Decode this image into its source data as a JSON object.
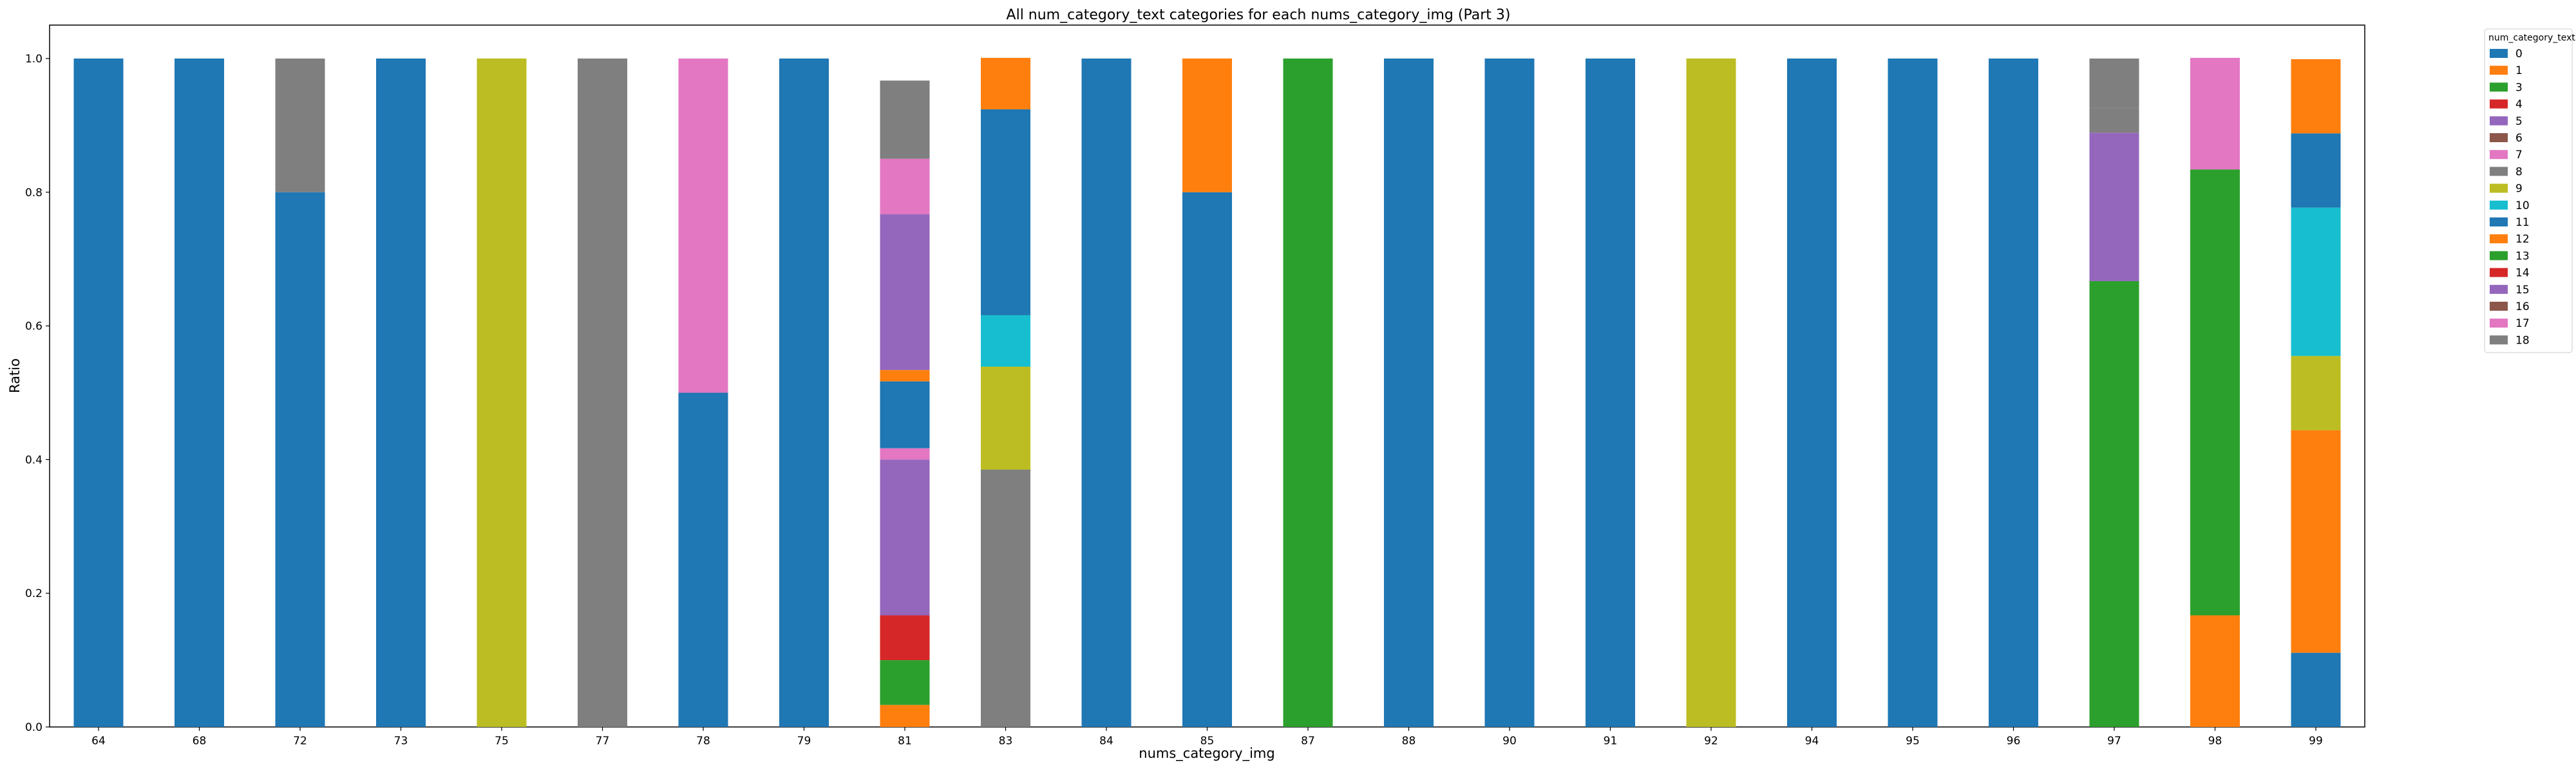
{
  "chart_data": {
    "type": "bar",
    "stacked": true,
    "title": "All num_category_text categories for each nums_category_img (Part 3)",
    "xlabel": "nums_category_img",
    "ylabel": "Ratio",
    "ylim": [
      0,
      1.05
    ],
    "yticks": [
      "0.0",
      "0.2",
      "0.4",
      "0.6",
      "0.8",
      "1.0"
    ],
    "grid": false,
    "legend_position": "outside-top-right",
    "legend_title": "num_category_text",
    "categories": [
      "64",
      "68",
      "72",
      "73",
      "75",
      "77",
      "78",
      "79",
      "81",
      "83",
      "84",
      "85",
      "87",
      "88",
      "90",
      "91",
      "92",
      "94",
      "95",
      "96",
      "97",
      "98",
      "99"
    ],
    "series": [
      {
        "name": "0",
        "color": "#1f77b4",
        "values": [
          1,
          1,
          0.8,
          1,
          0,
          0,
          0.5,
          1,
          0,
          0,
          1,
          0.8,
          0,
          1,
          1,
          1,
          0,
          1,
          1,
          1,
          0,
          0,
          0.111
        ]
      },
      {
        "name": "1",
        "color": "#ff7f0e",
        "values": [
          0,
          0,
          0,
          0,
          0,
          0,
          0,
          0,
          0.033,
          0,
          0,
          0,
          0,
          0,
          0,
          0,
          0,
          0,
          0,
          0,
          0,
          0.167,
          0.333
        ]
      },
      {
        "name": "3",
        "color": "#2ca02c",
        "values": [
          0,
          0,
          0,
          0,
          0,
          0,
          0,
          0,
          0.067,
          0,
          0,
          0,
          1,
          0,
          0,
          0,
          0,
          0,
          0,
          0,
          0.667,
          0.667,
          0
        ]
      },
      {
        "name": "4",
        "color": "#d62728",
        "values": [
          0,
          0,
          0,
          0,
          0,
          0,
          0,
          0,
          0.067,
          0,
          0,
          0,
          0,
          0,
          0,
          0,
          0,
          0,
          0,
          0,
          0,
          0,
          0
        ]
      },
      {
        "name": "5",
        "color": "#9467bd",
        "values": [
          0,
          0,
          0,
          0,
          0,
          0,
          0,
          0,
          0.233,
          0,
          0,
          0,
          0,
          0,
          0,
          0,
          0,
          0,
          0,
          0,
          0.222,
          0,
          0
        ]
      },
      {
        "name": "6",
        "color": "#8c564b",
        "values": [
          0,
          0,
          0,
          0,
          0,
          0,
          0,
          0,
          0,
          0,
          0,
          0,
          0,
          0,
          0,
          0,
          0,
          0,
          0,
          0,
          0,
          0,
          0
        ]
      },
      {
        "name": "7",
        "color": "#e377c2",
        "values": [
          0,
          0,
          0,
          0,
          0,
          0,
          0.5,
          0,
          0.017,
          0,
          0,
          0,
          0,
          0,
          0,
          0,
          0,
          0,
          0,
          0,
          0,
          0,
          0
        ]
      },
      {
        "name": "8",
        "color": "#7f7f7f",
        "values": [
          0,
          0,
          0.2,
          0,
          0,
          1,
          0,
          0,
          0,
          0.385,
          0,
          0,
          0,
          0,
          0,
          0,
          0,
          0,
          0,
          0,
          0.037,
          0,
          0
        ]
      },
      {
        "name": "9",
        "color": "#bcbd22",
        "values": [
          0,
          0,
          0,
          0,
          1,
          0,
          0,
          0,
          0,
          0.154,
          0,
          0,
          0,
          0,
          0,
          0,
          1,
          0,
          0,
          0,
          0,
          0,
          0.111
        ]
      },
      {
        "name": "10",
        "color": "#17becf",
        "values": [
          0,
          0,
          0,
          0,
          0,
          0,
          0,
          0,
          0,
          0.077,
          0,
          0,
          0,
          0,
          0,
          0,
          0,
          0,
          0,
          0,
          0,
          0,
          0.222
        ]
      },
      {
        "name": "11",
        "color": "#1f77b4",
        "values": [
          0,
          0,
          0,
          0,
          0,
          0,
          0,
          0,
          0.1,
          0.308,
          0,
          0,
          0,
          0,
          0,
          0,
          0,
          0,
          0,
          0,
          0,
          0,
          0.111
        ]
      },
      {
        "name": "12",
        "color": "#ff7f0e",
        "values": [
          0,
          0,
          0,
          0,
          0,
          0,
          0,
          0,
          0.017,
          0.077,
          0,
          0.2,
          0,
          0,
          0,
          0,
          0,
          0,
          0,
          0,
          0,
          0,
          0.111
        ]
      },
      {
        "name": "13",
        "color": "#2ca02c",
        "values": [
          0,
          0,
          0,
          0,
          0,
          0,
          0,
          0,
          0,
          0,
          0,
          0,
          0,
          0,
          0,
          0,
          0,
          0,
          0,
          0,
          0,
          0,
          0
        ]
      },
      {
        "name": "14",
        "color": "#d62728",
        "values": [
          0,
          0,
          0,
          0,
          0,
          0,
          0,
          0,
          0,
          0,
          0,
          0,
          0,
          0,
          0,
          0,
          0,
          0,
          0,
          0,
          0,
          0,
          0
        ]
      },
      {
        "name": "15",
        "color": "#9467bd",
        "values": [
          0,
          0,
          0,
          0,
          0,
          0,
          0,
          0,
          0.233,
          0,
          0,
          0,
          0,
          0,
          0,
          0,
          0,
          0,
          0,
          0,
          0,
          0,
          0
        ]
      },
      {
        "name": "16",
        "color": "#8c564b",
        "values": [
          0,
          0,
          0,
          0,
          0,
          0,
          0,
          0,
          0,
          0,
          0,
          0,
          0,
          0,
          0,
          0,
          0,
          0,
          0,
          0,
          0,
          0,
          0
        ]
      },
      {
        "name": "17",
        "color": "#e377c2",
        "values": [
          0,
          0,
          0,
          0,
          0,
          0,
          0,
          0,
          0.083,
          0,
          0,
          0,
          0,
          0,
          0,
          0,
          0,
          0,
          0,
          0,
          0,
          0.167,
          0
        ]
      },
      {
        "name": "18",
        "color": "#7f7f7f",
        "values": [
          0,
          0,
          0,
          0,
          0,
          0,
          0,
          0,
          0.117,
          0,
          0,
          0,
          0,
          0,
          0,
          0,
          0,
          0,
          0,
          0,
          0.074,
          0,
          0
        ]
      }
    ]
  }
}
